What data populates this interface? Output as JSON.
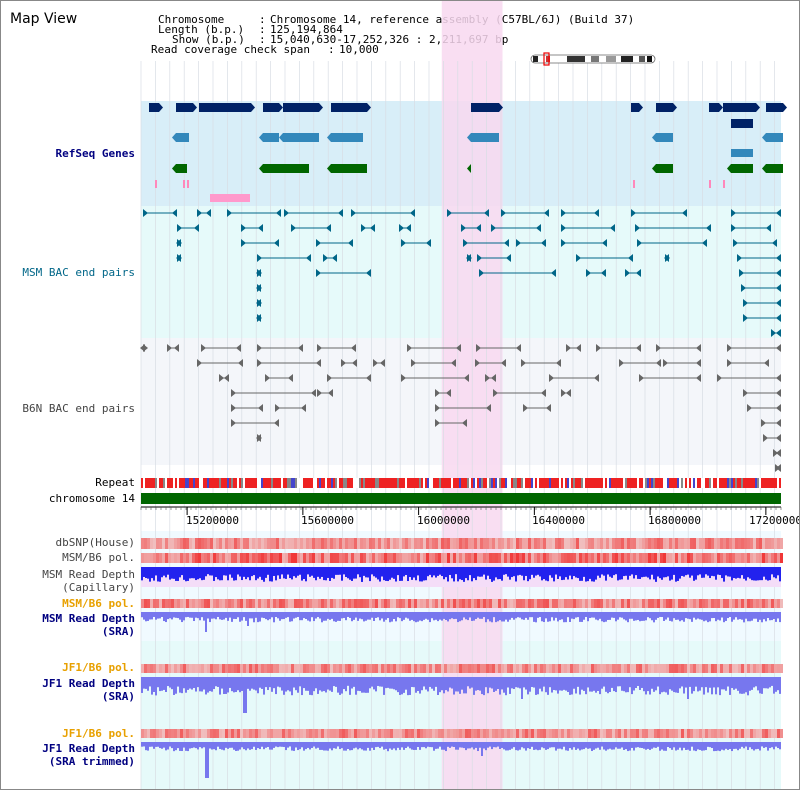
{
  "title": "Map View",
  "info": {
    "chromosome_label": "Chromosome",
    "chromosome_value": "Chromosome 14, reference assembly (C57BL/6J) (Build 37)",
    "length_label": "Length (b.p.)",
    "length_value": "125,194,864",
    "show_label": "Show (b.p.)",
    "show_value": "15,040,630-17,252,326 : 2,211,697 bp",
    "coverage_label": "Read coverage check span",
    "coverage_value": "10,000"
  },
  "tracks": {
    "refseq": "RefSeq Genes",
    "msm_bac": "MSM BAC end pairs",
    "b6n_bac": "B6N BAC end pairs",
    "repeat": "Repeat",
    "chromosome": "chromosome 14",
    "dbsnp": "dbSNP(House)",
    "msm_b6_pol": "MSM/B6 pol.",
    "msm_read_depth_cap_1": "MSM Read Depth",
    "msm_read_depth_cap_2": "(Capillary)",
    "msm_b6_pol_2": "MSM/B6 pol.",
    "msm_read_depth_sra_1": "MSM Read Depth",
    "msm_read_depth_sra_2": "(SRA)",
    "jf1_b6_pol": "JF1/B6 pol.",
    "jf1_read_depth_sra_1": "JF1 Read Depth",
    "jf1_read_depth_sra_2": "(SRA)",
    "jf1_b6_pol_2": "JF1/B6 pol.",
    "jf1_read_depth_trim_1": "JF1 Read Depth",
    "jf1_read_depth_trim_2": "(SRA trimmed)"
  },
  "axis": {
    "range_bp": [
      15040630,
      17252326
    ],
    "ticks": [
      "15200000",
      "15600000",
      "16000000",
      "16400000",
      "16800000",
      "17200000"
    ],
    "highlight_bp": [
      16080000,
      16290000
    ]
  },
  "colors": {
    "refseq_bg": "#d8eef8",
    "msm_bg": "#e6fafa",
    "b6n_bg": "#f4f6fa",
    "highlight": "#f8d8f0",
    "gene_dark": "#002266",
    "gene_mid": "#3388bb",
    "gene_green": "#006600",
    "msm_bac": "#006688",
    "b6n_bac": "#666666",
    "chrom_bar": "#006600",
    "depth_blue": "#2222ee",
    "depth_light": "#7777ee",
    "pol_red": "#ee2222"
  }
}
